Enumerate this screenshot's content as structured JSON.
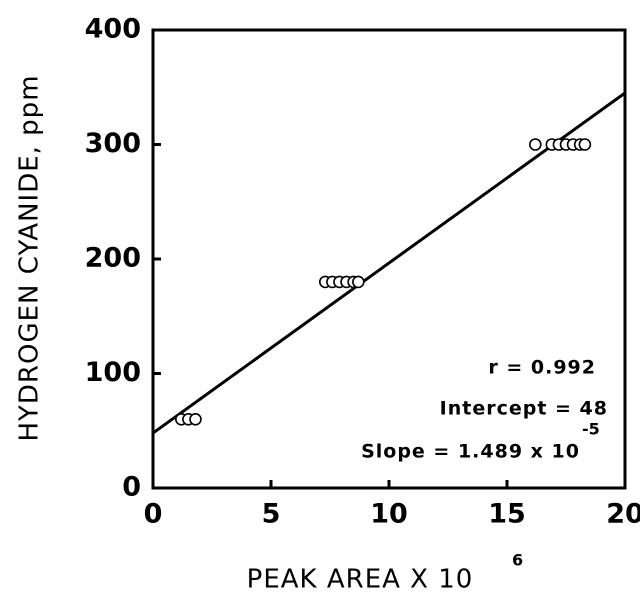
{
  "chart_data": {
    "type": "scatter",
    "xlabel": "PEAK AREA X 10",
    "xlabel_exponent": "6",
    "ylabel": "HYDROGEN CYANIDE, ppm",
    "annotations": [
      "r = 0.992",
      "Intercept = 48",
      "Slope = 1.489 x 10"
    ],
    "slope_exponent": "-5",
    "xlim": [
      0,
      20
    ],
    "ylim": [
      0,
      400
    ],
    "xticks": [
      0,
      5,
      10,
      15,
      20
    ],
    "yticks": [
      0,
      100,
      200,
      300,
      400
    ],
    "color": "#000000",
    "x": [
      1.2,
      1.5,
      1.8,
      7.3,
      7.6,
      7.9,
      8.2,
      8.5,
      8.7,
      16.2,
      16.9,
      17.2,
      17.5,
      17.8,
      18.1,
      18.3
    ],
    "values": [
      60,
      60,
      60,
      180,
      180,
      180,
      180,
      180,
      180,
      300,
      300,
      300,
      300,
      300,
      300,
      300
    ],
    "fit_line": {
      "x": [
        0,
        20
      ],
      "values": [
        48,
        345
      ]
    }
  }
}
